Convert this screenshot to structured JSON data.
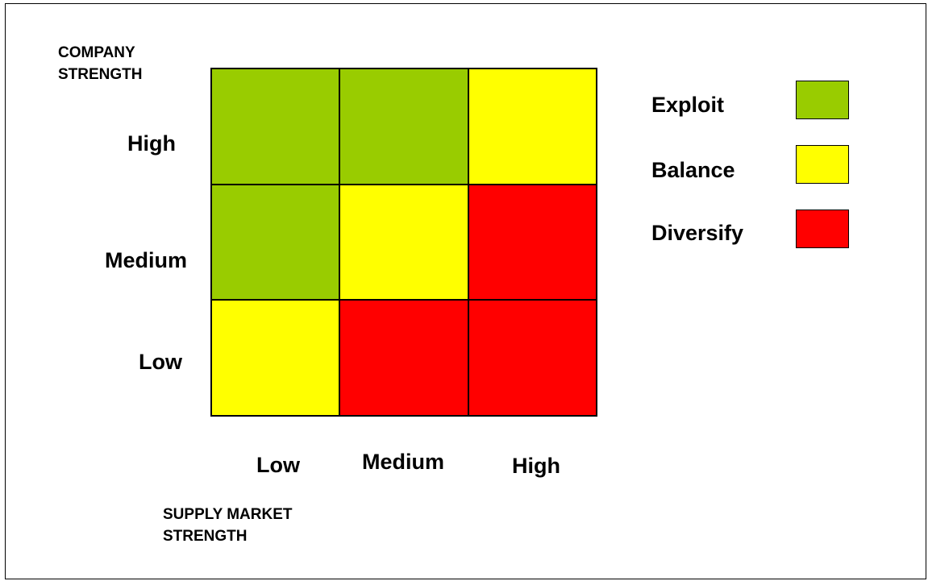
{
  "y_axis": {
    "title_line1": "COMPANY",
    "title_line2": "STRENGTH",
    "levels": [
      "High",
      "Medium",
      "Low"
    ]
  },
  "x_axis": {
    "title_line1": "SUPPLY MARKET",
    "title_line2": "STRENGTH",
    "levels": [
      "Low",
      "Medium",
      "High"
    ]
  },
  "colors": {
    "exploit": "#99cc00",
    "balance": "#ffff00",
    "diversify": "#ff0000"
  },
  "matrix": {
    "rows": [
      [
        "Exploit",
        "Exploit",
        "Balance"
      ],
      [
        "Exploit",
        "Balance",
        "Diversify"
      ],
      [
        "Balance",
        "Diversify",
        "Diversify"
      ]
    ]
  },
  "legend": [
    {
      "label": "Exploit",
      "color": "#99cc00"
    },
    {
      "label": "Balance",
      "color": "#ffff00"
    },
    {
      "label": "Diversify",
      "color": "#ff0000"
    }
  ]
}
